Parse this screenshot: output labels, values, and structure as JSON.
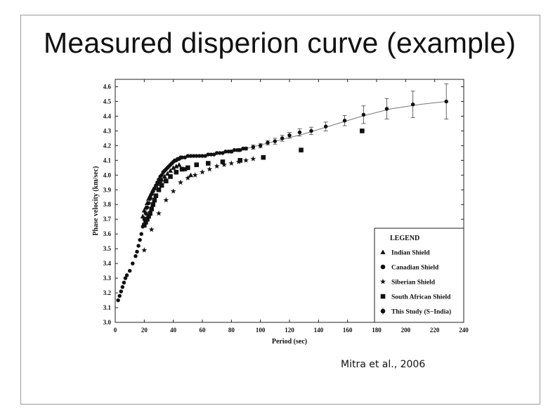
{
  "slide": {
    "title": "Measured disperion curve (example)",
    "citation": "Mitra et al., 2006"
  },
  "chart_data": {
    "type": "scatter",
    "title": "",
    "xlabel": "Period (sec)",
    "ylabel": "Phase velocity (km/sec)",
    "xlim": [
      0,
      240
    ],
    "ylim": [
      3.0,
      4.65
    ],
    "x_ticks": [
      0,
      20,
      40,
      60,
      80,
      100,
      120,
      140,
      160,
      180,
      200,
      220,
      240
    ],
    "y_ticks": [
      3.0,
      3.1,
      3.2,
      3.3,
      3.4,
      3.5,
      3.6,
      3.7,
      3.8,
      3.9,
      4.0,
      4.1,
      4.2,
      4.3,
      4.4,
      4.5,
      4.6
    ],
    "grid": false,
    "legend_position": "bottom-right",
    "legend_title": "LEGEND",
    "series": [
      {
        "name": "Indian Shield",
        "marker": "triangle",
        "x": [
          19,
          20,
          21,
          22,
          23,
          24,
          25,
          26,
          27,
          28,
          29,
          30,
          31,
          32,
          34,
          36,
          38,
          40,
          42,
          44,
          48,
          52
        ],
        "y": [
          3.72,
          3.76,
          3.78,
          3.81,
          3.84,
          3.86,
          3.88,
          3.9,
          3.91,
          3.93,
          3.94,
          3.95,
          3.96,
          3.97,
          3.99,
          4.01,
          4.03,
          4.05,
          4.06,
          4.07,
          4.04,
          4.0
        ]
      },
      {
        "name": "Canadian Shield",
        "marker": "circle",
        "x": [
          2,
          3,
          4,
          5,
          6,
          7,
          8,
          10,
          12,
          14,
          15,
          16,
          17,
          18,
          19,
          20,
          21,
          22,
          23,
          24,
          25,
          26,
          27,
          28,
          29,
          30,
          31,
          32,
          33,
          34,
          35,
          36,
          37,
          38,
          39,
          40,
          41,
          42,
          43,
          44,
          45,
          46,
          48,
          50,
          52,
          54,
          56,
          58,
          60,
          62,
          64,
          66,
          68,
          70,
          72,
          74,
          76,
          78,
          80,
          82,
          84,
          86,
          88,
          90
        ],
        "y": [
          3.15,
          3.18,
          3.21,
          3.24,
          3.27,
          3.3,
          3.32,
          3.35,
          3.4,
          3.45,
          3.48,
          3.52,
          3.56,
          3.6,
          3.65,
          3.7,
          3.74,
          3.78,
          3.81,
          3.84,
          3.87,
          3.89,
          3.91,
          3.93,
          3.95,
          3.97,
          3.99,
          4.0,
          4.02,
          4.03,
          4.04,
          4.05,
          4.06,
          4.07,
          4.08,
          4.09,
          4.1,
          4.1,
          4.11,
          4.11,
          4.12,
          4.12,
          4.12,
          4.13,
          4.13,
          4.13,
          4.13,
          4.13,
          4.13,
          4.13,
          4.14,
          4.14,
          4.14,
          4.15,
          4.15,
          4.15,
          4.16,
          4.16,
          4.16,
          4.17,
          4.17,
          4.17,
          4.18,
          4.18
        ]
      },
      {
        "name": "Siberian Shield",
        "marker": "star",
        "x": [
          20,
          25,
          30,
          35,
          40,
          45,
          50,
          55,
          60,
          65,
          70,
          75,
          80,
          85,
          90,
          95
        ],
        "y": [
          3.49,
          3.63,
          3.74,
          3.83,
          3.89,
          3.95,
          3.98,
          4.0,
          4.02,
          4.04,
          4.06,
          4.07,
          4.08,
          4.09,
          4.1,
          4.11
        ]
      },
      {
        "name": "South African Shield",
        "marker": "square",
        "x": [
          20,
          21,
          22,
          23,
          24,
          25,
          26,
          27,
          28,
          30,
          32,
          35,
          38,
          42,
          46,
          50,
          56,
          64,
          74,
          86,
          102,
          128,
          170
        ],
        "y": [
          3.66,
          3.68,
          3.7,
          3.72,
          3.74,
          3.77,
          3.8,
          3.83,
          3.86,
          3.9,
          3.93,
          3.96,
          3.99,
          4.02,
          4.04,
          4.05,
          4.07,
          4.08,
          4.09,
          4.1,
          4.12,
          4.17,
          4.3
        ]
      },
      {
        "name": "This Study (S−India)",
        "marker": "circle-errorbar",
        "x": [
          80,
          85,
          90,
          95,
          100,
          105,
          110,
          115,
          120,
          127,
          135,
          145,
          158,
          171,
          187,
          205,
          228
        ],
        "y": [
          4.16,
          4.17,
          4.18,
          4.19,
          4.2,
          4.22,
          4.23,
          4.25,
          4.27,
          4.29,
          4.3,
          4.33,
          4.37,
          4.41,
          4.45,
          4.48,
          4.5
        ],
        "yerr": [
          0.01,
          0.01,
          0.01,
          0.015,
          0.015,
          0.015,
          0.02,
          0.02,
          0.02,
          0.025,
          0.025,
          0.03,
          0.035,
          0.06,
          0.07,
          0.09,
          0.12
        ]
      }
    ],
    "fit_curve": {
      "x": [
        20,
        22,
        25,
        28,
        30,
        33,
        36,
        40,
        44,
        48,
        52,
        58,
        65,
        75,
        90,
        110,
        130,
        150,
        170,
        190,
        210,
        228
      ],
      "y": [
        3.7,
        3.78,
        3.86,
        3.92,
        3.96,
        4.0,
        4.04,
        4.08,
        4.1,
        4.12,
        4.12,
        4.13,
        4.14,
        4.15,
        4.18,
        4.23,
        4.28,
        4.34,
        4.4,
        4.45,
        4.48,
        4.5
      ]
    }
  }
}
